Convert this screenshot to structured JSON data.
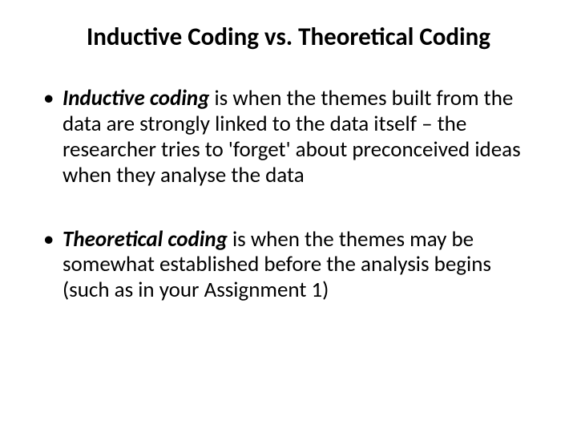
{
  "slide": {
    "title": "Inductive Coding vs. Theoretical Coding",
    "bullets": [
      {
        "term": "Inductive coding",
        "rest": " is when the themes built from the data are strongly linked to the data itself – the researcher tries to 'forget' about preconceived ideas when they analyse the data"
      },
      {
        "term": "Theoretical coding",
        "rest": " is when the themes may be somewhat established before the analysis begins (such as in your Assignment 1)"
      }
    ]
  },
  "style": {
    "background": "#ffffff",
    "text_color": "#000000",
    "title_fontsize": 31,
    "body_fontsize": 27,
    "font_family": "Calibri"
  }
}
